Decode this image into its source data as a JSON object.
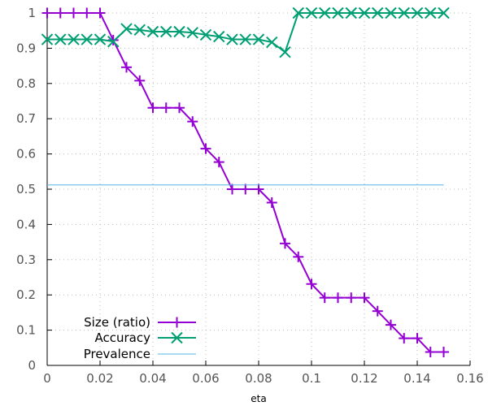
{
  "chart_data": {
    "type": "line",
    "title": "",
    "xlabel": "eta",
    "ylabel": "",
    "xlim": [
      0,
      0.16
    ],
    "ylim": [
      0,
      1
    ],
    "x_ticks": [
      "0",
      "0.02",
      "0.04",
      "0.06",
      "0.08",
      "0.1",
      "0.12",
      "0.14",
      "0.16"
    ],
    "y_ticks": [
      "0",
      "0.1",
      "0.2",
      "0.3",
      "0.4",
      "0.5",
      "0.6",
      "0.7",
      "0.8",
      "0.9",
      "1"
    ],
    "grid": true,
    "legend_position": "bottom-left",
    "series": [
      {
        "name": "Size (ratio)",
        "color": "#9400d3",
        "marker": "plus",
        "x": [
          0,
          0.005,
          0.01,
          0.015,
          0.02,
          0.025,
          0.03,
          0.035,
          0.04,
          0.045,
          0.05,
          0.055,
          0.06,
          0.065,
          0.07,
          0.075,
          0.08,
          0.085,
          0.09,
          0.095,
          0.1,
          0.105,
          0.11,
          0.115,
          0.12,
          0.125,
          0.13,
          0.135,
          0.14,
          0.145,
          0.15
        ],
        "y": [
          1,
          1,
          1,
          1,
          1,
          0.923,
          0.846,
          0.808,
          0.731,
          0.731,
          0.731,
          0.692,
          0.615,
          0.577,
          0.5,
          0.5,
          0.5,
          0.462,
          0.346,
          0.308,
          0.231,
          0.192,
          0.192,
          0.192,
          0.192,
          0.154,
          0.115,
          0.077,
          0.077,
          0.038,
          0.038
        ]
      },
      {
        "name": "Accuracy",
        "color": "#009e73",
        "marker": "cross",
        "x": [
          0,
          0.005,
          0.01,
          0.015,
          0.02,
          0.025,
          0.03,
          0.035,
          0.04,
          0.045,
          0.05,
          0.055,
          0.06,
          0.065,
          0.07,
          0.075,
          0.08,
          0.085,
          0.09,
          0.095,
          0.1,
          0.105,
          0.11,
          0.115,
          0.12,
          0.125,
          0.13,
          0.135,
          0.14,
          0.145,
          0.15
        ],
        "y": [
          0.925,
          0.925,
          0.925,
          0.925,
          0.925,
          0.919,
          0.955,
          0.952,
          0.947,
          0.947,
          0.947,
          0.944,
          0.938,
          0.933,
          0.925,
          0.925,
          0.925,
          0.917,
          0.889,
          1,
          1,
          1,
          1,
          1,
          1,
          1,
          1,
          1,
          1,
          1,
          1
        ]
      },
      {
        "name": "Prevalence",
        "color": "#56b4e9",
        "marker": "none",
        "x": [
          0,
          0.15
        ],
        "y": [
          0.512,
          0.512
        ]
      }
    ]
  }
}
